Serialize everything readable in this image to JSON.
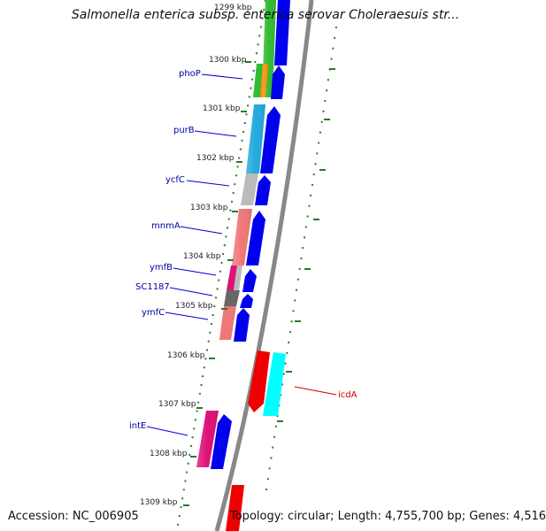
{
  "header": {
    "title": "Salmonella enterica subsp. enterica serovar Choleraesuis str..."
  },
  "footer": {
    "accession": "Accession: NC_006905",
    "summary": "Topology: circular; Length: 4,755,700 bp; Genes: 4,516"
  },
  "ticks": [
    {
      "label": "1299 kbp",
      "kbp": 1299
    },
    {
      "label": "1300 kbp",
      "kbp": 1300
    },
    {
      "label": "1301 kbp",
      "kbp": 1301
    },
    {
      "label": "1302 kbp",
      "kbp": 1302
    },
    {
      "label": "1303 kbp",
      "kbp": 1303
    },
    {
      "label": "1304 kbp",
      "kbp": 1304
    },
    {
      "label": "1305 kbp",
      "kbp": 1305
    },
    {
      "label": "1306 kbp",
      "kbp": 1306
    },
    {
      "label": "1307 kbp",
      "kbp": 1307
    },
    {
      "label": "1308 kbp",
      "kbp": 1308
    },
    {
      "label": "1309 kbp",
      "kbp": 1309
    }
  ],
  "gene_labels": [
    {
      "name": "phoP",
      "strand": "forward"
    },
    {
      "name": "purB",
      "strand": "forward"
    },
    {
      "name": "ycfC",
      "strand": "forward"
    },
    {
      "name": "mnmA",
      "strand": "forward"
    },
    {
      "name": "ymfB",
      "strand": "forward"
    },
    {
      "name": "SC1187",
      "strand": "forward"
    },
    {
      "name": "ymfC",
      "strand": "forward"
    },
    {
      "name": "intE",
      "strand": "forward"
    },
    {
      "name": "icdA",
      "strand": "reverse"
    }
  ],
  "colors": {
    "backbone": "#888888",
    "tick": "#2a7a2a",
    "forward_gene": "#0000ee",
    "reverse_gene": "#ee0000",
    "label_forward": "#0000aa",
    "label_reverse": "#cc0000",
    "cog_green": "#33bb33",
    "cog_orange": "#ff8800",
    "cog_cyan": "#22aadd",
    "cog_gray": "#bbbbbb",
    "cog_salmon": "#ee7777",
    "cog_magenta": "#dd1177",
    "cog_darkgray": "#666666",
    "cog_aqua": "#00ffff",
    "cog_pink": "#ff9999"
  }
}
